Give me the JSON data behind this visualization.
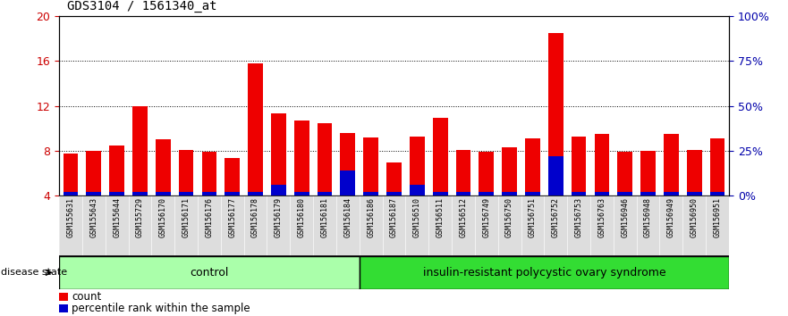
{
  "title": "GDS3104 / 1561340_at",
  "samples": [
    "GSM155631",
    "GSM155643",
    "GSM155644",
    "GSM155729",
    "GSM156170",
    "GSM156171",
    "GSM156176",
    "GSM156177",
    "GSM156178",
    "GSM156179",
    "GSM156180",
    "GSM156181",
    "GSM156184",
    "GSM156186",
    "GSM156187",
    "GSM156510",
    "GSM156511",
    "GSM156512",
    "GSM156749",
    "GSM156750",
    "GSM156751",
    "GSM156752",
    "GSM156753",
    "GSM156763",
    "GSM156946",
    "GSM156948",
    "GSM156949",
    "GSM156950",
    "GSM156951"
  ],
  "counts": [
    7.8,
    8.0,
    8.5,
    12.0,
    9.0,
    8.1,
    7.9,
    7.4,
    15.8,
    11.3,
    10.7,
    10.5,
    9.6,
    9.2,
    7.0,
    9.3,
    10.9,
    8.1,
    7.9,
    8.3,
    9.1,
    18.5,
    9.3,
    9.5,
    7.9,
    8.0,
    9.5,
    8.1,
    9.1
  ],
  "percentiles": [
    2.0,
    2.0,
    2.0,
    2.0,
    2.0,
    2.0,
    2.0,
    2.0,
    2.0,
    6.0,
    2.0,
    2.0,
    14.0,
    2.0,
    2.0,
    6.0,
    2.0,
    2.0,
    2.0,
    2.0,
    2.0,
    22.0,
    2.0,
    2.0,
    2.0,
    2.0,
    2.0,
    2.0,
    2.0
  ],
  "control_count": 13,
  "bar_color_red": "#EE0000",
  "bar_color_blue": "#0000CC",
  "ylim_left": [
    4,
    20
  ],
  "ylim_right": [
    0,
    100
  ],
  "yticks_left": [
    4,
    8,
    12,
    16,
    20
  ],
  "yticks_right": [
    0,
    25,
    50,
    75,
    100
  ],
  "left_axis_color": "#CC0000",
  "right_axis_color": "#0000AA",
  "tick_label_fontsize": 6.0,
  "title_fontsize": 10,
  "ctrl_color": "#AAFFAA",
  "disease_color": "#33DD33"
}
